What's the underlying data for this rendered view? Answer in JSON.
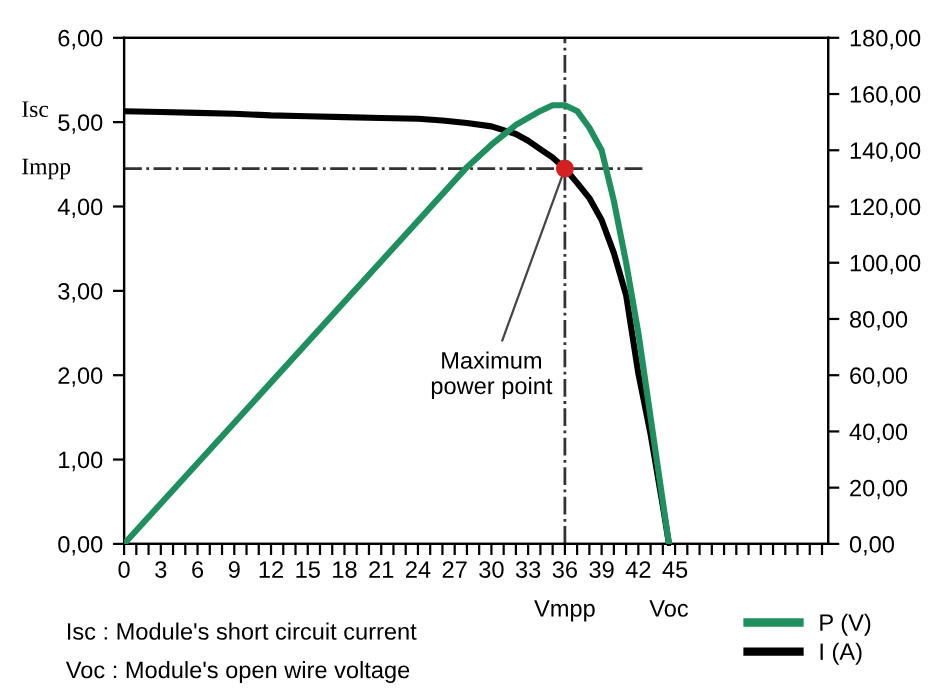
{
  "chart_data": {
    "type": "line",
    "x": [
      0,
      3,
      6,
      9,
      12,
      15,
      18,
      21,
      24,
      26,
      28,
      30,
      32,
      33,
      34,
      35,
      36,
      37,
      38,
      39,
      40,
      41,
      42,
      43,
      44,
      44.5
    ],
    "series": [
      {
        "name": "P (V)",
        "color": "#1f8f5f",
        "axis": "y2",
        "x": [
          0,
          28,
          30,
          32,
          34,
          35,
          36,
          37,
          38,
          39,
          40,
          41,
          42,
          43,
          44,
          44.5
        ],
        "values": [
          0,
          134,
          142,
          149,
          154,
          156,
          156,
          154,
          148,
          140,
          122,
          100,
          75,
          45,
          15,
          0
        ]
      },
      {
        "name": "I (A)",
        "color": "#000000",
        "values": [
          5.13,
          5.12,
          5.11,
          5.1,
          5.08,
          5.07,
          5.06,
          5.05,
          5.04,
          5.02,
          4.99,
          4.95,
          4.86,
          4.78,
          4.68,
          4.58,
          4.45,
          4.28,
          4.1,
          3.84,
          3.45,
          2.95,
          2.02,
          1.3,
          0.45,
          0
        ]
      },
      {
        "type": "scatter",
        "marker": "circle",
        "color": "#d42020",
        "x": [
          36
        ],
        "values": [
          4.45
        ]
      }
    ],
    "xlim": [
      0,
      57.5
    ],
    "xticks": [
      0,
      {
        "value": 1,
        "label": null
      },
      {
        "value": 2,
        "label": null
      },
      3,
      {
        "value": 4,
        "label": null
      },
      {
        "value": 5,
        "label": null
      },
      6,
      {
        "value": 7,
        "label": null
      },
      {
        "value": 8,
        "label": null
      },
      9,
      {
        "value": 10,
        "label": null
      },
      {
        "value": 11,
        "label": null
      },
      12,
      {
        "value": 13,
        "label": null
      },
      {
        "value": 14,
        "label": null
      },
      15,
      {
        "value": 16,
        "label": null
      },
      {
        "value": 17,
        "label": null
      },
      18,
      {
        "value": 19,
        "label": null
      },
      {
        "value": 20,
        "label": null
      },
      21,
      {
        "value": 22,
        "label": null
      },
      {
        "value": 23,
        "label": null
      },
      24,
      {
        "value": 25,
        "label": null
      },
      {
        "value": 26,
        "label": null
      },
      27,
      {
        "value": 28,
        "label": null
      },
      {
        "value": 29,
        "label": null
      },
      30,
      {
        "value": 31,
        "label": null
      },
      {
        "value": 32,
        "label": null
      },
      33,
      {
        "value": 34,
        "label": null
      },
      {
        "value": 35,
        "label": null
      },
      36,
      {
        "value": 37,
        "label": null
      },
      {
        "value": 38,
        "label": null
      },
      39,
      {
        "value": 40,
        "label": null
      },
      {
        "value": 41,
        "label": null
      },
      42,
      {
        "value": 43,
        "label": null
      },
      {
        "value": 44,
        "label": null
      },
      45,
      {
        "value": 46,
        "label": null
      },
      {
        "value": 47,
        "label": null
      },
      {
        "value": 48,
        "label": null
      },
      {
        "value": 49,
        "label": null
      },
      {
        "value": 50,
        "label": null
      },
      {
        "value": 51,
        "label": null
      },
      {
        "value": 52,
        "label": null
      },
      {
        "value": 53,
        "label": null
      },
      {
        "value": 54,
        "label": null
      },
      {
        "value": 55,
        "label": null
      },
      {
        "value": 56,
        "label": null
      },
      {
        "value": 57,
        "label": null
      }
    ],
    "ylim": [
      0,
      6
    ],
    "yticks": [
      {
        "value": 0,
        "label": "0,00"
      },
      {
        "value": 1,
        "label": "1,00"
      },
      {
        "value": 2,
        "label": "2,00"
      },
      {
        "value": 3,
        "label": "3,00"
      },
      {
        "value": 4,
        "label": "4,00"
      },
      {
        "value": 5,
        "label": "5,00"
      },
      {
        "value": 6,
        "label": "6,00"
      }
    ],
    "y2lim": [
      0,
      180
    ],
    "y2ticks": [
      {
        "value": 0,
        "label": "0,00"
      },
      {
        "value": 20,
        "label": "20,00"
      },
      {
        "value": 40,
        "label": "40,00"
      },
      {
        "value": 60,
        "label": "60,00"
      },
      {
        "value": 80,
        "label": "80,00"
      },
      {
        "value": 100,
        "label": "100,00"
      },
      {
        "value": 120,
        "label": "120,00"
      },
      {
        "value": 140,
        "label": "140,00"
      },
      {
        "value": 160,
        "label": "160,00"
      },
      {
        "value": 180,
        "label": "180,00"
      }
    ],
    "ref_lines": [
      {
        "axis": "x",
        "value": 36,
        "label": "Vmpp",
        "line_style": "dashdot",
        "color": "#333333"
      },
      {
        "axis": "y",
        "value": 4.45,
        "label": "Impp",
        "line_style": "dashdot",
        "color": "#333333"
      }
    ],
    "annotations": [
      "Isc",
      {
        "text": "Voc",
        "x": 44.5,
        "y": 0
      },
      {
        "text": "Maximum\npower point",
        "x": 36,
        "y": 4.45
      },
      "Isc : Module's short circuit current",
      "Voc : Module's open wire voltage"
    ],
    "marker": "none",
    "line_style": "solid",
    "grid": false,
    "legend": "bottom right"
  }
}
